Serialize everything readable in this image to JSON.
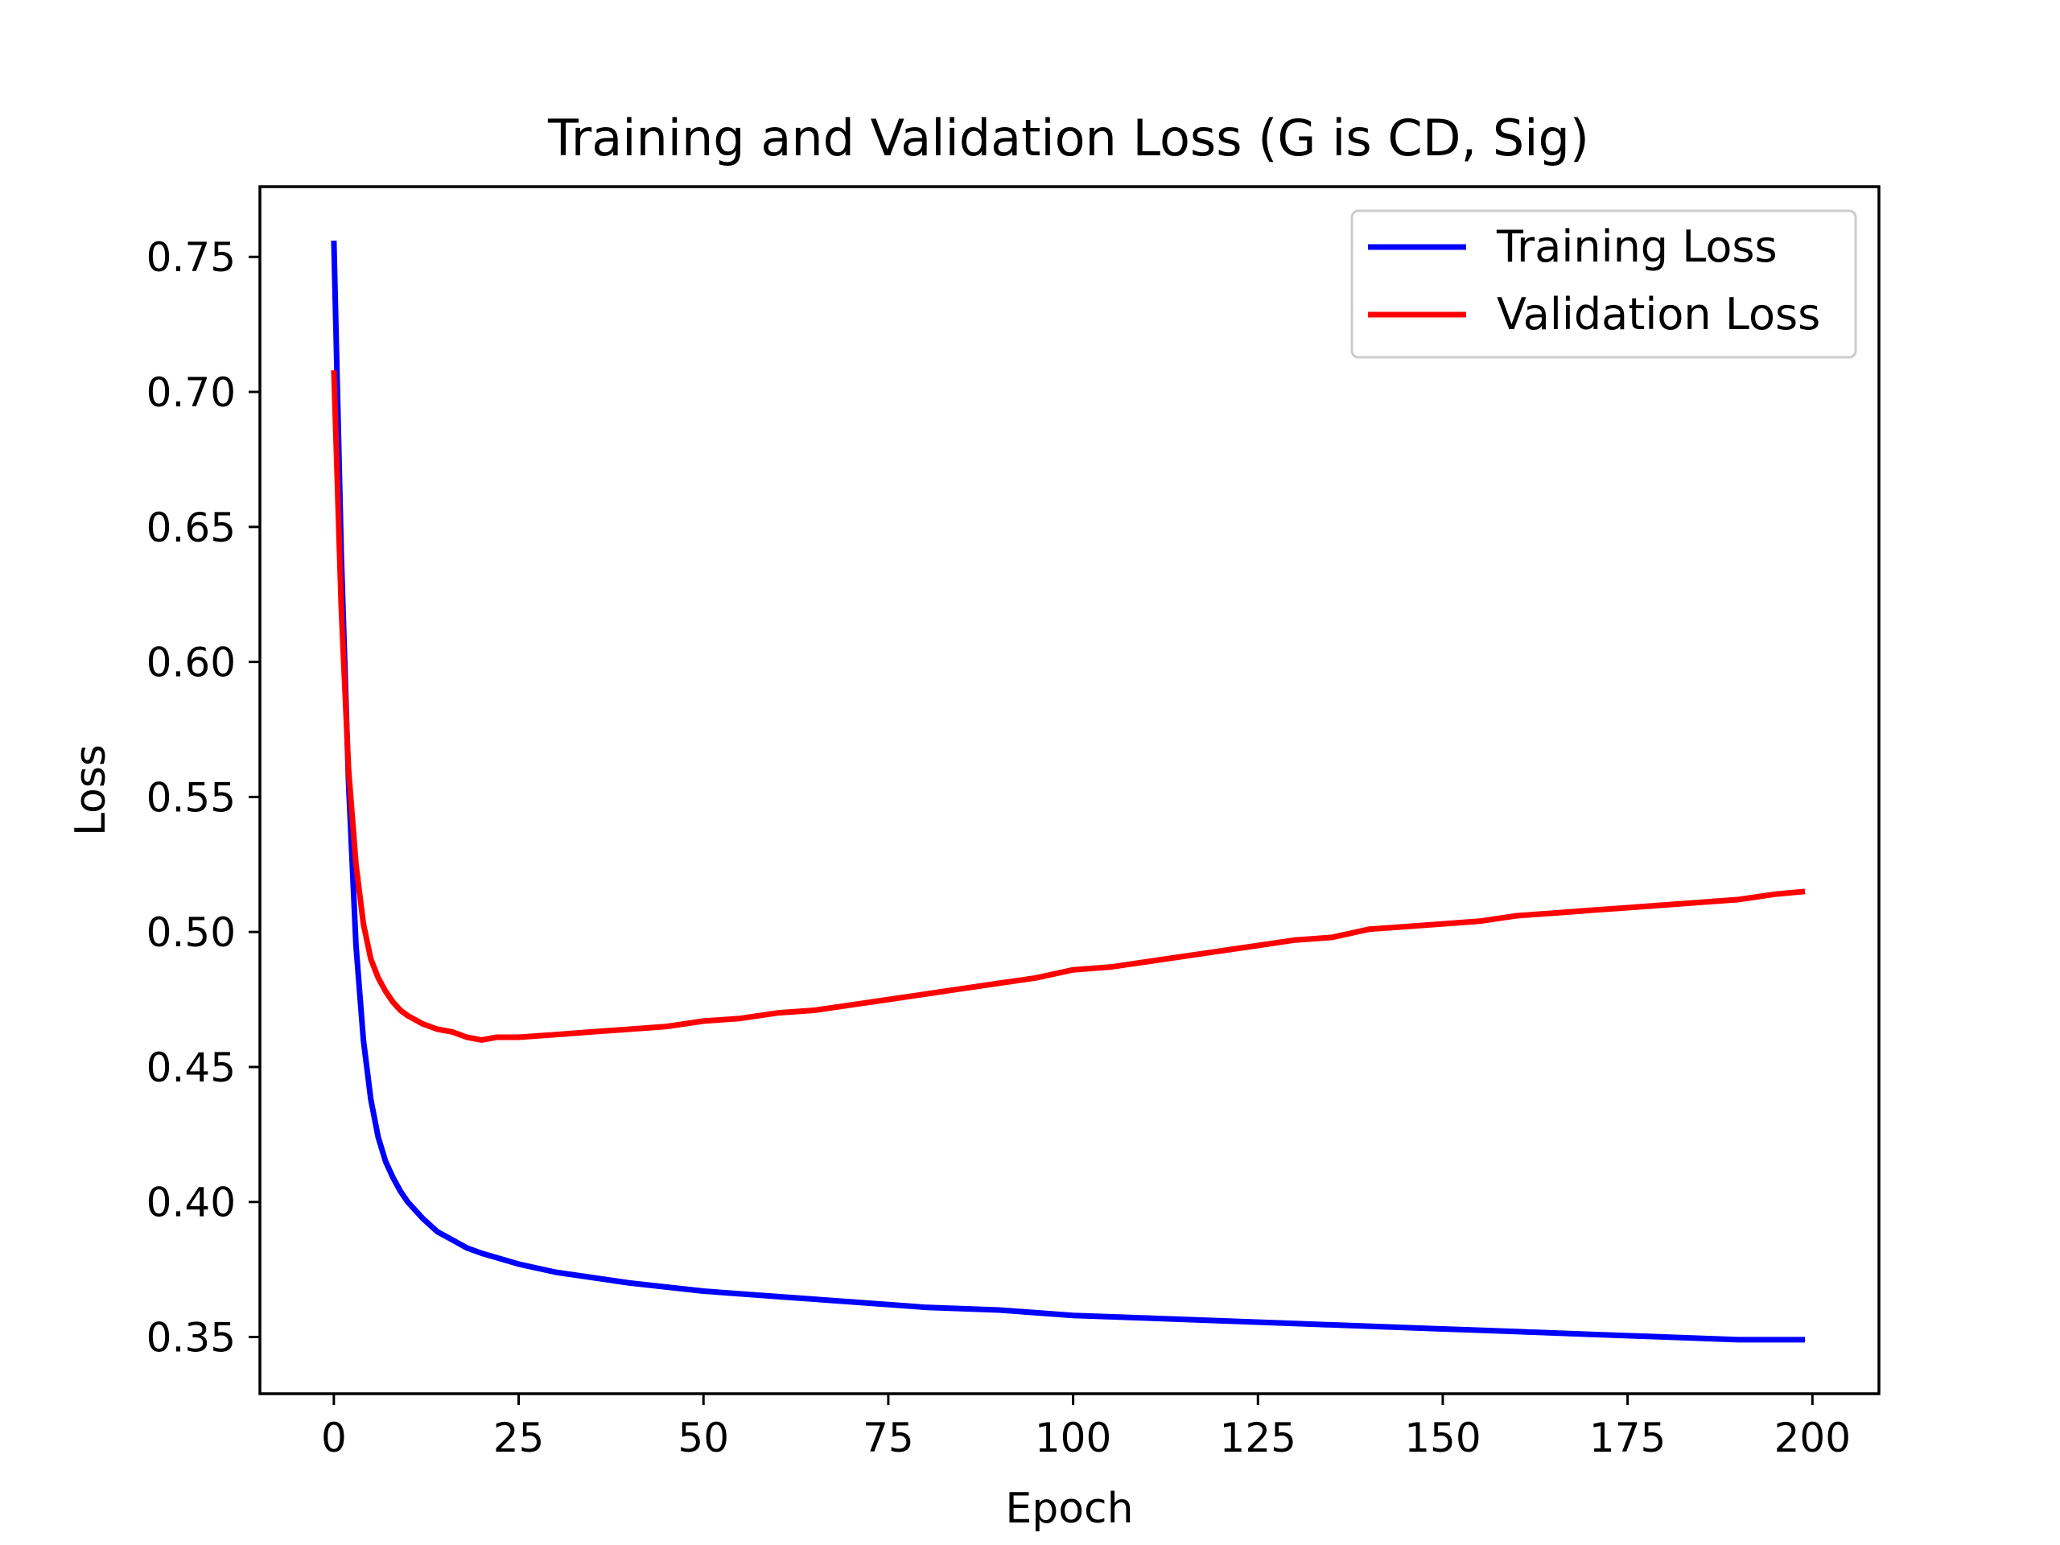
{
  "chart_data": {
    "type": "line",
    "title": "Training and Validation Loss (G is CD, Sig)",
    "xlabel": "Epoch",
    "ylabel": "Loss",
    "xlim": [
      -10,
      209
    ],
    "ylim": [
      0.329,
      0.776
    ],
    "xticks": [
      0,
      25,
      50,
      75,
      100,
      125,
      150,
      175,
      200
    ],
    "yticks": [
      0.35,
      0.4,
      0.45,
      0.5,
      0.55,
      0.6,
      0.65,
      0.7,
      0.75
    ],
    "xtick_labels": [
      "0",
      "25",
      "50",
      "75",
      "100",
      "125",
      "150",
      "175",
      "200"
    ],
    "ytick_labels": [
      "0.35",
      "0.40",
      "0.45",
      "0.50",
      "0.55",
      "0.60",
      "0.65",
      "0.70",
      "0.75"
    ],
    "grid": false,
    "legend_position": "top-right",
    "series": [
      {
        "name": "Training Loss",
        "color": "#0000ff",
        "x": [
          0,
          1,
          2,
          3,
          4,
          5,
          6,
          7,
          8,
          9,
          10,
          12,
          14,
          16,
          18,
          20,
          25,
          30,
          40,
          50,
          60,
          70,
          80,
          90,
          100,
          110,
          120,
          130,
          140,
          150,
          160,
          170,
          180,
          190,
          199
        ],
        "y": [
          0.756,
          0.64,
          0.555,
          0.495,
          0.46,
          0.438,
          0.424,
          0.415,
          0.409,
          0.404,
          0.4,
          0.394,
          0.389,
          0.386,
          0.383,
          0.381,
          0.377,
          0.374,
          0.37,
          0.367,
          0.365,
          0.363,
          0.361,
          0.36,
          0.358,
          0.357,
          0.356,
          0.355,
          0.354,
          0.353,
          0.352,
          0.351,
          0.35,
          0.349,
          0.349
        ]
      },
      {
        "name": "Validation Loss",
        "color": "#ff0000",
        "x": [
          0,
          1,
          2,
          3,
          4,
          5,
          6,
          7,
          8,
          9,
          10,
          12,
          14,
          16,
          18,
          20,
          22,
          25,
          30,
          35,
          40,
          45,
          50,
          55,
          60,
          65,
          70,
          75,
          80,
          85,
          90,
          95,
          100,
          105,
          110,
          115,
          120,
          125,
          130,
          135,
          140,
          145,
          150,
          155,
          160,
          165,
          170,
          175,
          180,
          185,
          190,
          195,
          199
        ],
        "y": [
          0.708,
          0.62,
          0.56,
          0.525,
          0.503,
          0.49,
          0.483,
          0.478,
          0.474,
          0.471,
          0.469,
          0.466,
          0.464,
          0.463,
          0.461,
          0.46,
          0.461,
          0.461,
          0.462,
          0.463,
          0.464,
          0.465,
          0.467,
          0.468,
          0.47,
          0.471,
          0.473,
          0.475,
          0.477,
          0.479,
          0.481,
          0.483,
          0.486,
          0.487,
          0.489,
          0.491,
          0.493,
          0.495,
          0.497,
          0.498,
          0.501,
          0.502,
          0.503,
          0.504,
          0.506,
          0.507,
          0.508,
          0.509,
          0.51,
          0.511,
          0.512,
          0.514,
          0.515
        ]
      }
    ]
  }
}
